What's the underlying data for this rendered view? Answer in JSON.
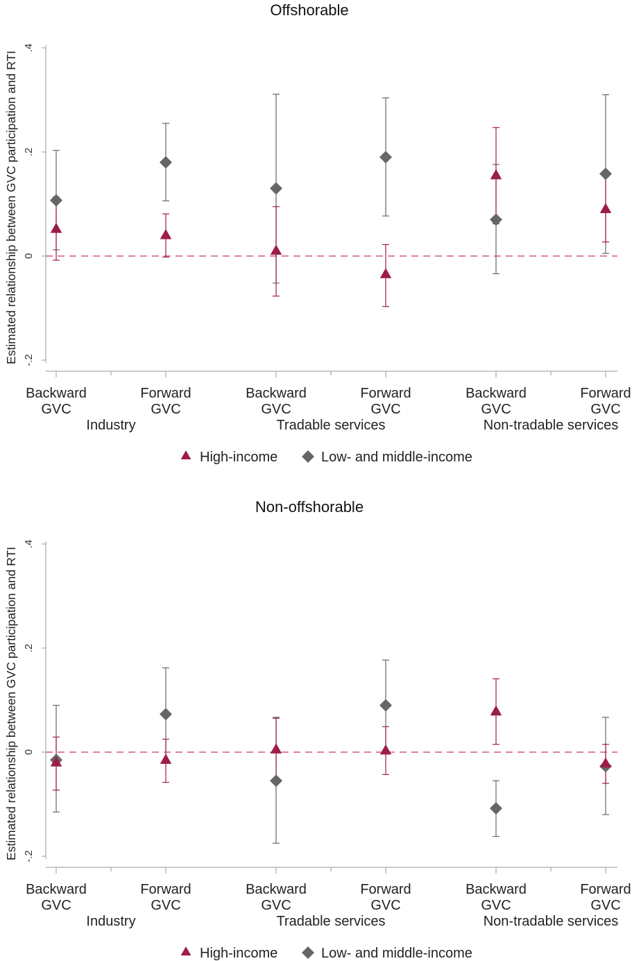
{
  "y_axis_label": "Estimated relationship between GVC participation and RTI",
  "colors": {
    "high_income": "#9c1d45",
    "low_middle_income": "#666666",
    "zero_line": "#d4577f",
    "axis": "#9a9a9a"
  },
  "icons": {
    "high_income_marker": "triangle-marker-icon",
    "low_middle_income_marker": "diamond-marker-icon"
  },
  "chart_data": [
    {
      "type": "scatter",
      "title": "Offshorable",
      "ylabel": "Estimated relationship between GVC participation and RTI",
      "ylim": [
        -0.2,
        0.4
      ],
      "yticks": [
        -0.2,
        0,
        0.2,
        0.4
      ],
      "ytick_labels": [
        "-.2",
        "0",
        ".2",
        ".4"
      ],
      "reference_line": 0,
      "grid": false,
      "legend_position": "bottom",
      "x_categories": [
        "Backward GVC",
        "Forward GVC",
        "Backward GVC",
        "Forward GVC",
        "Backward GVC",
        "Forward GVC"
      ],
      "x_category_lines": [
        [
          "Backward",
          "GVC"
        ],
        [
          "Forward",
          "GVC"
        ],
        [
          "Backward",
          "GVC"
        ],
        [
          "Forward",
          "GVC"
        ],
        [
          "Backward",
          "GVC"
        ],
        [
          "Forward",
          "GVC"
        ]
      ],
      "groups": [
        "Industry",
        "Tradable services",
        "Non-tradable services"
      ],
      "series": [
        {
          "name": "High-income",
          "marker": "triangle",
          "values": [
            0.052,
            0.04,
            0.01,
            -0.035,
            0.155,
            0.09
          ],
          "ci_low": [
            -0.008,
            -0.002,
            -0.077,
            -0.097,
            0.062,
            0.027
          ],
          "ci_high": [
            0.113,
            0.081,
            0.095,
            0.022,
            0.247,
            0.153
          ]
        },
        {
          "name": "Low- and middle-income",
          "marker": "diamond",
          "values": [
            0.107,
            0.18,
            0.13,
            0.19,
            0.07,
            0.158
          ],
          "ci_low": [
            0.012,
            0.106,
            -0.052,
            0.077,
            -0.034,
            0.005
          ],
          "ci_high": [
            0.203,
            0.255,
            0.311,
            0.304,
            0.176,
            0.31
          ]
        }
      ]
    },
    {
      "type": "scatter",
      "title": "Non-offshorable",
      "ylabel": "Estimated relationship between GVC participation and RTI",
      "ylim": [
        -0.2,
        0.4
      ],
      "yticks": [
        -0.2,
        0,
        0.2,
        0.4
      ],
      "ytick_labels": [
        "-.2",
        "0",
        ".2",
        ".4"
      ],
      "reference_line": 0,
      "grid": false,
      "legend_position": "bottom",
      "x_categories": [
        "Backward GVC",
        "Forward GVC",
        "Backward GVC",
        "Forward GVC",
        "Backward GVC",
        "Forward GVC"
      ],
      "x_category_lines": [
        [
          "Backward",
          "GVC"
        ],
        [
          "Forward",
          "GVC"
        ],
        [
          "Backward",
          "GVC"
        ],
        [
          "Forward",
          "GVC"
        ],
        [
          "Backward",
          "GVC"
        ],
        [
          "Forward",
          "GVC"
        ]
      ],
      "groups": [
        "Industry",
        "Tradable services",
        "Non-tradable services"
      ],
      "series": [
        {
          "name": "High-income",
          "marker": "triangle",
          "values": [
            -0.02,
            -0.015,
            0.005,
            0.003,
            0.078,
            -0.022
          ],
          "ci_low": [
            -0.073,
            -0.058,
            -0.057,
            -0.043,
            0.015,
            -0.06
          ],
          "ci_high": [
            0.029,
            0.025,
            0.065,
            0.049,
            0.141,
            0.015
          ]
        },
        {
          "name": "Low- and middle-income",
          "marker": "diamond",
          "values": [
            -0.015,
            0.073,
            -0.055,
            0.09,
            -0.108,
            -0.027
          ],
          "ci_low": [
            -0.115,
            -0.015,
            -0.175,
            0.003,
            -0.162,
            -0.12
          ],
          "ci_high": [
            0.09,
            0.162,
            0.067,
            0.177,
            -0.055,
            0.067
          ]
        }
      ]
    }
  ]
}
